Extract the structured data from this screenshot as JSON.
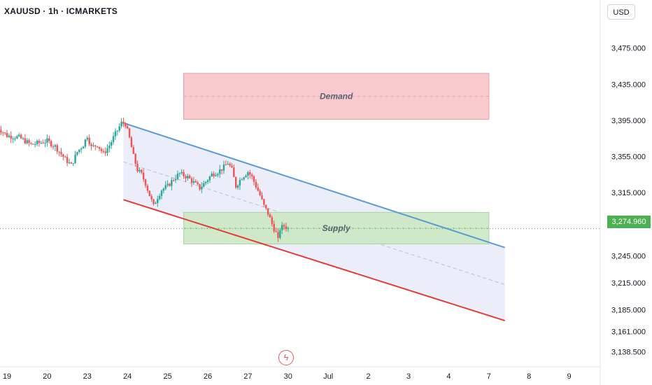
{
  "header": {
    "symbol_title": "XAUUSD · 1h · ICMARKETS",
    "currency_button": "USD"
  },
  "last_price_label": "3,274.960",
  "axis_icon": "lightning-icon",
  "colors": {
    "up": "#26a69a",
    "down": "#ef5350",
    "upper_channel": "#5b9bd5",
    "lower_channel": "#e53935",
    "demand_zone": "#f8c6ca",
    "supply_zone": "#c9e6c1",
    "channel_fill": "#e8ebf8",
    "price_tag": "#4caf50"
  },
  "chart_data": {
    "type": "candlestick",
    "symbol": "XAUUSD",
    "timeframe": "1h",
    "exchange": "ICMARKETS",
    "currency": "USD",
    "ylim": [
      3125,
      3505
    ],
    "y_ticks": [
      "3,475.000",
      "3,435.000",
      "3,395.000",
      "3,355.000",
      "3,315.000",
      "3,245.000",
      "3,215.000",
      "3,185.000",
      "3,161.000",
      "3,138.500"
    ],
    "y_tick_values": [
      3475,
      3435,
      3395,
      3355,
      3315,
      3245,
      3215,
      3185,
      3161,
      3138.5
    ],
    "x_ticks": [
      "19",
      "20",
      "23",
      "24",
      "25",
      "26",
      "27",
      "30",
      "Jul",
      "2",
      "3",
      "4",
      "7",
      "8",
      "9"
    ],
    "x_tick_index": [
      0,
      1,
      2,
      3,
      4,
      5,
      6,
      7,
      8,
      9,
      10,
      11,
      12,
      13,
      14
    ],
    "last_price": 3274.96,
    "price_path": [
      [
        -0.3,
        3390
      ],
      [
        0.0,
        3378
      ],
      [
        0.3,
        3376
      ],
      [
        0.6,
        3368
      ],
      [
        1.0,
        3372
      ],
      [
        1.2,
        3366
      ],
      [
        1.45,
        3352
      ],
      [
        1.6,
        3345
      ],
      [
        1.75,
        3360
      ],
      [
        1.9,
        3368
      ],
      [
        2.0,
        3378
      ],
      [
        2.1,
        3365
      ],
      [
        2.25,
        3368
      ],
      [
        2.4,
        3358
      ],
      [
        2.55,
        3367
      ],
      [
        2.7,
        3380
      ],
      [
        2.85,
        3392
      ],
      [
        2.95,
        3391
      ],
      [
        3.05,
        3375
      ],
      [
        3.15,
        3355
      ],
      [
        3.25,
        3340
      ],
      [
        3.35,
        3335
      ],
      [
        3.45,
        3325
      ],
      [
        3.55,
        3312
      ],
      [
        3.65,
        3300
      ],
      [
        3.75,
        3310
      ],
      [
        3.85,
        3318
      ],
      [
        4.0,
        3322
      ],
      [
        4.15,
        3330
      ],
      [
        4.3,
        3336
      ],
      [
        4.5,
        3332
      ],
      [
        4.65,
        3326
      ],
      [
        4.8,
        3320
      ],
      [
        4.95,
        3327
      ],
      [
        5.1,
        3335
      ],
      [
        5.25,
        3338
      ],
      [
        5.4,
        3343
      ],
      [
        5.5,
        3348
      ],
      [
        5.6,
        3340
      ],
      [
        5.7,
        3322
      ],
      [
        5.85,
        3332
      ],
      [
        6.0,
        3338
      ],
      [
        6.1,
        3332
      ],
      [
        6.2,
        3322
      ],
      [
        6.3,
        3312
      ],
      [
        6.4,
        3300
      ],
      [
        6.5,
        3292
      ],
      [
        6.6,
        3280
      ],
      [
        6.7,
        3270
      ],
      [
        6.75,
        3262
      ],
      [
        6.8,
        3275
      ],
      [
        6.9,
        3278
      ],
      [
        7.0,
        3275
      ]
    ],
    "annotations": [
      {
        "type": "rect",
        "label": "Demand",
        "price_top": 3447,
        "price_bottom": 3396,
        "x_start": 4.4,
        "x_end": 12.0
      },
      {
        "type": "rect",
        "label": "Supply",
        "price_top": 3293,
        "price_bottom": 3258,
        "x_start": 4.4,
        "x_end": 12.0
      }
    ],
    "channel": {
      "upper": {
        "x1": 2.9,
        "y1": 3392,
        "x2": 12.4,
        "y2": 3254
      },
      "lower": {
        "x1": 2.9,
        "y1": 3307,
        "x2": 12.4,
        "y2": 3173
      },
      "mid_dash": {
        "x1": 2.9,
        "y1": 3349,
        "x2": 12.4,
        "y2": 3213
      }
    }
  }
}
